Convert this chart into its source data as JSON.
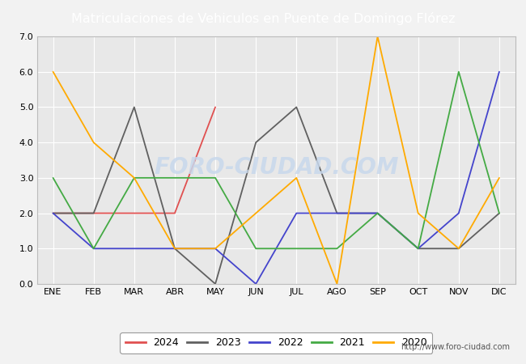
{
  "title": "Matriculaciones de Vehiculos en Puente de Domingo Flórez",
  "months": [
    "ENE",
    "FEB",
    "MAR",
    "ABR",
    "MAY",
    "JUN",
    "JUL",
    "AGO",
    "SEP",
    "OCT",
    "NOV",
    "DIC"
  ],
  "series": {
    "2024": [
      2,
      2,
      2,
      2,
      5,
      null,
      null,
      null,
      null,
      null,
      null,
      null
    ],
    "2023": [
      2,
      2,
      5,
      1,
      0,
      4,
      5,
      2,
      2,
      1,
      1,
      2
    ],
    "2022": [
      2,
      1,
      1,
      1,
      1,
      0,
      2,
      2,
      2,
      1,
      2,
      6
    ],
    "2021": [
      3,
      1,
      3,
      3,
      3,
      1,
      1,
      1,
      2,
      1,
      6,
      2
    ],
    "2020": [
      6,
      4,
      3,
      1,
      1,
      2,
      3,
      0,
      7,
      2,
      1,
      3
    ]
  },
  "colors": {
    "2024": "#e05050",
    "2023": "#606060",
    "2022": "#4444cc",
    "2021": "#44aa44",
    "2020": "#ffaa00"
  },
  "ylim": [
    0.0,
    7.0
  ],
  "yticks": [
    0.0,
    1.0,
    2.0,
    3.0,
    4.0,
    5.0,
    6.0,
    7.0
  ],
  "header_bg": "#5b9bd5",
  "title_fontsize": 11.5,
  "plot_bg": "#e8e8e8",
  "outer_bg": "#f2f2f2",
  "grid_color": "#ffffff",
  "watermark_text": "FORO-CIUDAD.COM",
  "watermark_color": "#c8d8ec",
  "url_text": "http://www.foro-ciudad.com",
  "footer_bg": "#5b9bd5",
  "legend_years": [
    "2024",
    "2023",
    "2022",
    "2021",
    "2020"
  ]
}
